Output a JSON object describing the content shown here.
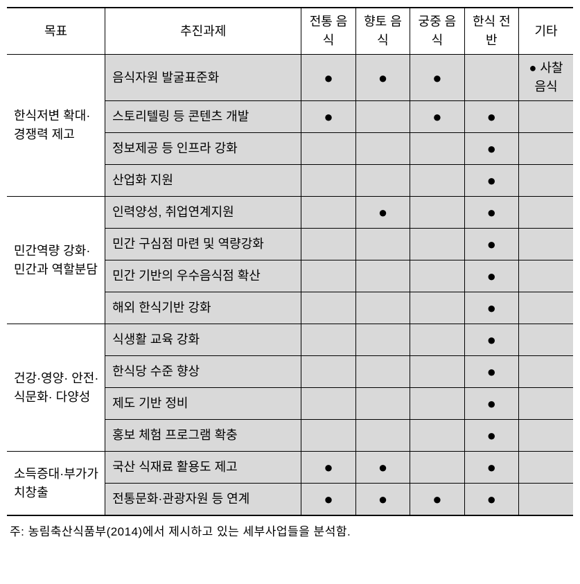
{
  "columns": {
    "goal": "목표",
    "task": "추진과제",
    "c1": "전통\n음식",
    "c2": "향토\n음식",
    "c3": "궁중\n음식",
    "c4": "한식\n전반",
    "c5": "기타"
  },
  "groups": [
    {
      "goal": "한식저변\n확대·\n경쟁력\n제고",
      "rows": [
        {
          "task": "음식자원 발굴표준화",
          "marks": [
            "●",
            "●",
            "●",
            "",
            ""
          ],
          "etc": "●\n사찰\n음식"
        },
        {
          "task": "스토리텔링 등 콘텐츠 개발",
          "marks": [
            "●",
            "",
            "●",
            "●",
            ""
          ],
          "etc": ""
        },
        {
          "task": "정보제공 등 인프라 강화",
          "marks": [
            "",
            "",
            "",
            "●",
            ""
          ],
          "etc": ""
        },
        {
          "task": "산업화 지원",
          "marks": [
            "",
            "",
            "",
            "●",
            ""
          ],
          "etc": ""
        }
      ]
    },
    {
      "goal": "민간역량\n강화·\n민간과\n역할분담",
      "rows": [
        {
          "task": "인력양성, 취업연계지원",
          "marks": [
            "",
            "●",
            "",
            "●",
            ""
          ],
          "etc": ""
        },
        {
          "task": "민간 구심점 마련 및 역량강화",
          "marks": [
            "",
            "",
            "",
            "●",
            ""
          ],
          "etc": ""
        },
        {
          "task": "민간 기반의 우수음식점 확산",
          "marks": [
            "",
            "",
            "",
            "●",
            ""
          ],
          "etc": ""
        },
        {
          "task": "해외 한식기반 강화",
          "marks": [
            "",
            "",
            "",
            "●",
            ""
          ],
          "etc": ""
        }
      ]
    },
    {
      "goal": "건강·영양·\n안전·\n식문화·\n다양성",
      "rows": [
        {
          "task": "식생활 교육 강화",
          "marks": [
            "",
            "",
            "",
            "●",
            ""
          ],
          "etc": ""
        },
        {
          "task": "한식당 수준 향상",
          "marks": [
            "",
            "",
            "",
            "●",
            ""
          ],
          "etc": ""
        },
        {
          "task": "제도 기반 정비",
          "marks": [
            "",
            "",
            "",
            "●",
            ""
          ],
          "etc": ""
        },
        {
          "task": "홍보 체험 프로그램 확충",
          "marks": [
            "",
            "",
            "",
            "●",
            ""
          ],
          "etc": ""
        }
      ]
    },
    {
      "goal": "소득증대·부가가치창출",
      "rows": [
        {
          "task": "국산 식재료 활용도 제고",
          "marks": [
            "●",
            "●",
            "",
            "●",
            ""
          ],
          "etc": ""
        },
        {
          "task": "전통문화·관광자원 등 연계",
          "marks": [
            "●",
            "●",
            "●",
            "●",
            ""
          ],
          "etc": ""
        }
      ]
    }
  ],
  "footnote": "주: 농림축산식품부(2014)에서 제시하고 있는 세부사업들을 분석함."
}
